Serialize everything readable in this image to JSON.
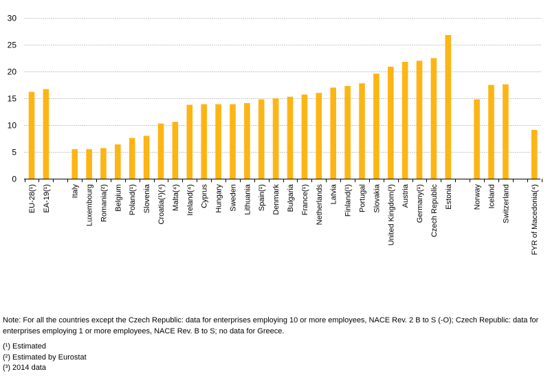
{
  "chart_data": {
    "type": "bar",
    "title": "",
    "xlabel": "",
    "ylabel": "",
    "ylim": [
      0,
      30
    ],
    "yticks": [
      0,
      5,
      10,
      15,
      20,
      25,
      30
    ],
    "grid": true,
    "legend": "none",
    "bar_color": "#FDB515",
    "categories": [
      "EU-28(¹)",
      "EA-19(¹)",
      "",
      "Italy",
      "Luxembourg",
      "Romania(²)",
      "Belgium",
      "Poland(¹)",
      "Slovenia",
      "Croatia(¹)(⁴)",
      "Malta(⁴)",
      "Ireland(⁴)",
      "Cyprus",
      "Hungary",
      "Sweden",
      "Lithuania",
      "Spain(¹)",
      "Denmark",
      "Bulgaria",
      "France(¹)",
      "Netherlands",
      "Latvia",
      "Finland(¹)",
      "Portugal",
      "Slovakia",
      "United Kingdom(³)",
      "Austria",
      "Germany(¹)",
      "Czech Republic",
      "Estonia",
      "",
      "Norway",
      "Iceland",
      "Switzerland",
      "",
      "FYR of Macedonia(⁴)"
    ],
    "values": [
      16.2,
      16.7,
      null,
      5.5,
      5.5,
      5.7,
      6.4,
      7.6,
      8.0,
      10.3,
      10.6,
      13.8,
      13.9,
      13.9,
      13.9,
      14.1,
      14.8,
      15.0,
      15.3,
      15.7,
      16.0,
      17.0,
      17.3,
      17.8,
      19.6,
      20.9,
      21.8,
      22.0,
      22.5,
      26.8,
      null,
      14.8,
      17.5,
      17.6,
      null,
      9.1
    ]
  },
  "notes": {
    "main": "Note: For all the countries except the Czech Republic: data for enterprises employing 10 or more employees, NACE Rev. 2 B to S (-O); Czech Republic: data for enterprises employing 1 or more employees, NACE Rev. B to S; no data for Greece.",
    "footnotes": [
      "(¹) Estimated",
      "(²) Estimated by Eurostat",
      "(³) 2014 data"
    ]
  }
}
